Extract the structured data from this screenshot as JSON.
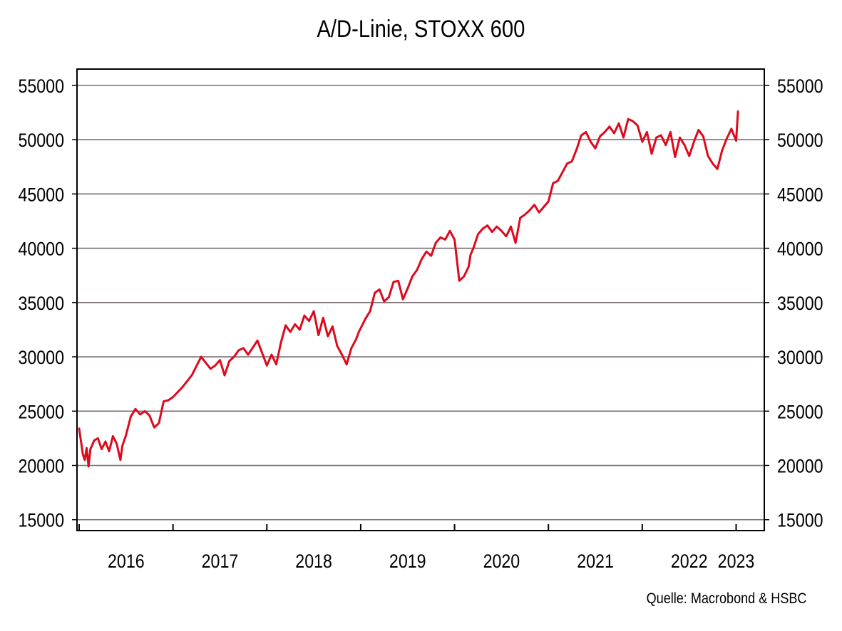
{
  "chart_data": {
    "type": "line",
    "title": "A/D-Linie, STOXX 600",
    "source": "Quelle: Macrobond & HSBC",
    "xlabel": "",
    "ylabel": "",
    "ylim": [
      14000,
      56500
    ],
    "y_ticks": [
      15000,
      20000,
      25000,
      30000,
      35000,
      40000,
      45000,
      50000,
      55000
    ],
    "y_tick_labels": [
      "15000",
      "20000",
      "25000",
      "30000",
      "35000",
      "40000",
      "45000",
      "50000",
      "55000"
    ],
    "xlim": [
      2016.0,
      2023.3
    ],
    "x_ticks": [
      2016,
      2017,
      2018,
      2019,
      2020,
      2021,
      2022,
      2023
    ],
    "x_tick_labels": [
      "2016",
      "2017",
      "2018",
      "2019",
      "2020",
      "2021",
      "2022",
      "2023"
    ],
    "grid": true,
    "line_color": "#dd0a1e",
    "grid_color": "#7a6e72",
    "series": [
      {
        "x": [
          2016.0,
          2016.04,
          2016.06,
          2016.08,
          2016.1,
          2016.12,
          2016.16,
          2016.2,
          2016.24,
          2016.28,
          2016.32,
          2016.36,
          2016.4,
          2016.44,
          2016.46,
          2016.5,
          2016.55,
          2016.6,
          2016.65,
          2016.7,
          2016.75,
          2016.8,
          2016.85,
          2016.9,
          2016.95,
          2017.0,
          2017.1,
          2017.2,
          2017.3,
          2017.4,
          2017.45,
          2017.5,
          2017.55,
          2017.6,
          2017.65,
          2017.7,
          2017.75,
          2017.8,
          2017.9,
          2018.0,
          2018.05,
          2018.1,
          2018.15,
          2018.2,
          2018.25,
          2018.3,
          2018.35,
          2018.4,
          2018.45,
          2018.5,
          2018.55,
          2018.6,
          2018.65,
          2018.7,
          2018.75,
          2018.8,
          2018.85,
          2018.9,
          2018.95,
          2018.98,
          2019.05,
          2019.1,
          2019.15,
          2019.2,
          2019.25,
          2019.3,
          2019.35,
          2019.4,
          2019.45,
          2019.5,
          2019.55,
          2019.6,
          2019.65,
          2019.7,
          2019.75,
          2019.8,
          2019.85,
          2019.9,
          2019.95,
          2020.0,
          2020.05,
          2020.1,
          2020.15,
          2020.17,
          2020.2,
          2020.25,
          2020.3,
          2020.35,
          2020.4,
          2020.45,
          2020.5,
          2020.55,
          2020.6,
          2020.65,
          2020.7,
          2020.75,
          2020.8,
          2020.85,
          2020.9,
          2020.95,
          2021.0,
          2021.05,
          2021.1,
          2021.15,
          2021.2,
          2021.25,
          2021.3,
          2021.35,
          2021.4,
          2021.45,
          2021.5,
          2021.55,
          2021.6,
          2021.65,
          2021.7,
          2021.75,
          2021.8,
          2021.85,
          2021.9,
          2021.95,
          2022.0,
          2022.05,
          2022.1,
          2022.15,
          2022.2,
          2022.25,
          2022.3,
          2022.35,
          2022.4,
          2022.45,
          2022.5,
          2022.55,
          2022.6,
          2022.65,
          2022.7,
          2022.75,
          2022.8,
          2022.85,
          2022.9,
          2022.95,
          2023.0,
          2023.02
        ],
        "values": [
          23400,
          21000,
          20500,
          21600,
          19900,
          21500,
          22300,
          22500,
          21500,
          22200,
          21300,
          22700,
          22000,
          20500,
          21800,
          22800,
          24500,
          25200,
          24700,
          25000,
          24600,
          23500,
          23900,
          25900,
          26000,
          26300,
          27200,
          28300,
          30000,
          28900,
          29200,
          29700,
          28300,
          29600,
          30000,
          30600,
          30800,
          30200,
          31500,
          29200,
          30200,
          29300,
          31300,
          32900,
          32300,
          33000,
          32500,
          33800,
          33300,
          34200,
          32000,
          33600,
          31900,
          32800,
          31000,
          30200,
          29300,
          30800,
          31600,
          32300,
          33500,
          34200,
          35900,
          36200,
          35100,
          35500,
          36900,
          37000,
          35300,
          36300,
          37400,
          38000,
          39000,
          39700,
          39300,
          40500,
          41000,
          40800,
          41600,
          40800,
          37000,
          37400,
          38300,
          39400,
          40000,
          41300,
          41800,
          42100,
          41500,
          42000,
          41600,
          41100,
          42000,
          40500,
          42800,
          43100,
          43500,
          44000,
          43300,
          43800,
          44300,
          46000,
          46200,
          47000,
          47800,
          48000,
          49100,
          50400,
          50700,
          49800,
          49200,
          50300,
          50700,
          51200,
          50600,
          51500,
          50200,
          51900,
          51700,
          51300,
          49800,
          50700,
          48700,
          50200,
          50400,
          49500,
          50700,
          48400,
          50200,
          49500,
          48500,
          49800,
          50900,
          50300,
          48500,
          47800,
          47300,
          49000,
          50100,
          51000,
          49900,
          52600
        ],
        "name": ""
      }
    ]
  }
}
